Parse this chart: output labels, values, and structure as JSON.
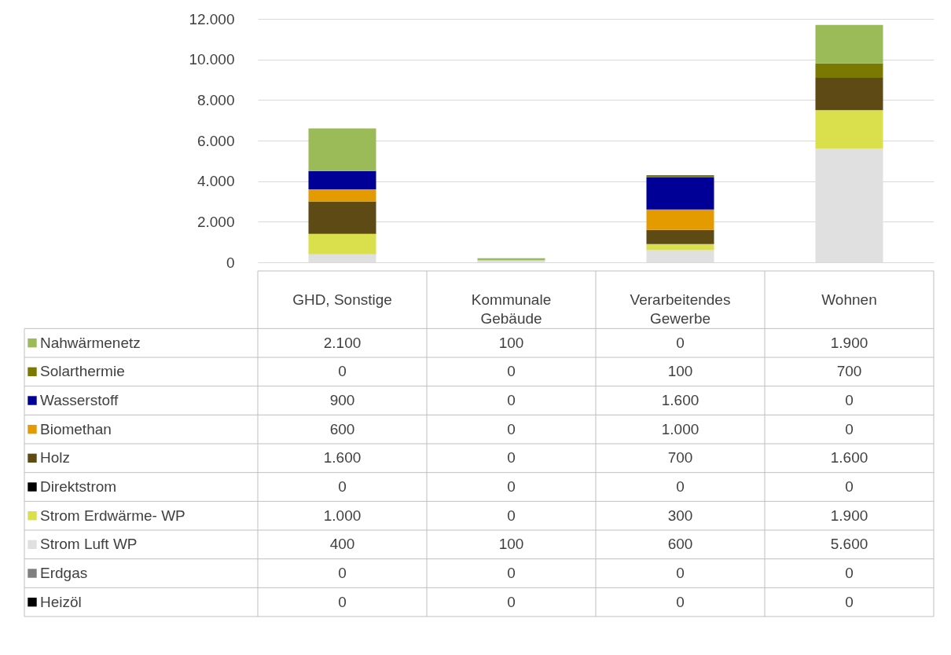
{
  "chart_data": {
    "type": "bar",
    "stacked": true,
    "categories": [
      "GHD, Sonstige",
      "Kommunale Gebäude",
      "Verarbeitendes Gewerbe",
      "Wohnen"
    ],
    "ylim": [
      0,
      12000
    ],
    "yticks": [
      0,
      {
        "value": 2000,
        "label": "2.000"
      },
      {
        "value": 4000,
        "label": "4.000"
      },
      {
        "value": 6000,
        "label": "6.000"
      },
      {
        "value": 8000,
        "label": "8.000"
      },
      {
        "value": 10000,
        "label": "10.000"
      },
      {
        "value": 12000,
        "label": "12.000"
      }
    ],
    "grid": "y",
    "legend": "left",
    "series": [
      {
        "name": "Heizöl",
        "color": "#000000",
        "values": [
          0,
          0,
          0,
          0
        ],
        "value_labels": [
          "0",
          "0",
          "0",
          "0"
        ]
      },
      {
        "name": "Erdgas",
        "color": "#7f7f7f",
        "values": [
          0,
          0,
          0,
          0
        ],
        "value_labels": [
          "0",
          "0",
          "0",
          "0"
        ]
      },
      {
        "name": "Strom Luft WP",
        "color": "#e0e0e0",
        "values": [
          400,
          100,
          600,
          5600
        ],
        "value_labels": [
          "400",
          "100",
          "600",
          "5.600"
        ]
      },
      {
        "name": "Strom Erdwärme- WP",
        "color": "#d9e04b",
        "values": [
          1000,
          0,
          300,
          1900
        ],
        "value_labels": [
          "1.000",
          "0",
          "300",
          "1.900"
        ]
      },
      {
        "name": "Direktstrom",
        "color": "#000000",
        "values": [
          0,
          0,
          0,
          0
        ],
        "value_labels": [
          "0",
          "0",
          "0",
          "0"
        ]
      },
      {
        "name": "Holz",
        "color": "#5e4a14",
        "values": [
          1600,
          0,
          700,
          1600
        ],
        "value_labels": [
          "1.600",
          "0",
          "700",
          "1.600"
        ]
      },
      {
        "name": "Biomethan",
        "color": "#e39b00",
        "values": [
          600,
          0,
          1000,
          0
        ],
        "value_labels": [
          "600",
          "0",
          "1.000",
          "0"
        ]
      },
      {
        "name": "Wasserstoff",
        "color": "#000096",
        "values": [
          900,
          0,
          1600,
          0
        ],
        "value_labels": [
          "900",
          "0",
          "1.600",
          "0"
        ]
      },
      {
        "name": "Solarthermie",
        "color": "#7a7a00",
        "values": [
          0,
          0,
          100,
          700
        ],
        "value_labels": [
          "0",
          "0",
          "100",
          "700"
        ]
      },
      {
        "name": "Nahwärmenetz",
        "color": "#9bbb59",
        "values": [
          2100,
          100,
          0,
          1900
        ],
        "value_labels": [
          "2.100",
          "100",
          "0",
          "1.900"
        ]
      }
    ]
  }
}
